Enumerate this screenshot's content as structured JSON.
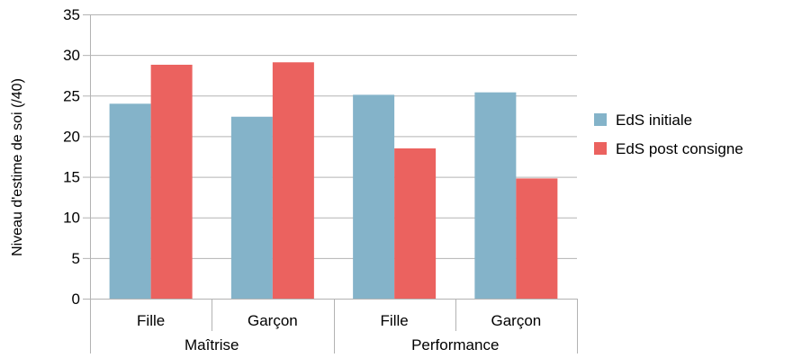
{
  "chart_data": {
    "type": "bar",
    "title": "",
    "xlabel": "",
    "ylabel": "Niveau d'estime de soi (/40)",
    "ylim": [
      0,
      35
    ],
    "yticks": [
      0,
      5,
      10,
      15,
      20,
      25,
      30,
      35
    ],
    "grid": "horizontal",
    "legend_position": "right",
    "groups": [
      {
        "label": "Maîtrise",
        "categories": [
          "Fille",
          "Garçon"
        ]
      },
      {
        "label": "Performance",
        "categories": [
          "Fille",
          "Garçon"
        ]
      }
    ],
    "series": [
      {
        "name": "EdS initiale",
        "color": "#84b3c9",
        "values": [
          24,
          22.4,
          25.1,
          25.4
        ]
      },
      {
        "name": "EdS post consigne",
        "color": "#eb625f",
        "values": [
          28.8,
          29.1,
          18.5,
          14.8
        ]
      }
    ]
  }
}
